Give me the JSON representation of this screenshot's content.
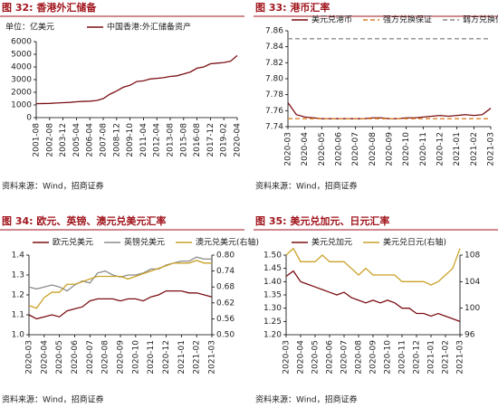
{
  "chart_data": [
    {
      "type": "line",
      "title": "图 32: 香港外汇储备",
      "unit_label": "单位：亿美元",
      "source": "资料来源：Wind，招商证券",
      "categories": [
        "2001-08",
        null,
        "2002-08",
        null,
        "2003-12",
        null,
        "2005-04",
        null,
        "2006-04",
        null,
        "2007-08",
        null,
        "2008-12",
        null,
        "2009-10",
        null,
        "2011-04",
        null,
        "2012-04",
        null,
        "2013-08",
        null,
        "2015-08",
        null,
        "2016-08",
        null,
        "2017-12",
        null,
        "2019-02",
        null,
        "2020-04"
      ],
      "series": [
        {
          "name": "中国香港:外汇储备资产",
          "color": "#7b0f14",
          "values": [
            1100,
            1110,
            1120,
            1150,
            1180,
            1200,
            1250,
            1280,
            1300,
            1350,
            1500,
            1850,
            2100,
            2400,
            2550,
            2850,
            2900,
            3050,
            3100,
            3150,
            3250,
            3300,
            3450,
            3600,
            3900,
            4000,
            4250,
            4300,
            4350,
            4450,
            4900
          ]
        }
      ],
      "ylim": [
        0,
        6000
      ],
      "yticks": [
        0,
        1000,
        2000,
        3000,
        4000,
        5000,
        6000
      ]
    },
    {
      "type": "line",
      "title": "图 33: 港币汇率",
      "source": "资料来源：Wind，招商证券",
      "categories": [
        "2020-03",
        null,
        "2020-04",
        null,
        "2020-05",
        null,
        "2020-06",
        null,
        "2020-07",
        null,
        "2020-08",
        null,
        "2020-09",
        null,
        "2020-10",
        null,
        "2020-11",
        null,
        "2020-12",
        null,
        "2021-01",
        null,
        "2021-02",
        null,
        "2021-03"
      ],
      "series": [
        {
          "name": "美元兑港币",
          "color": "#7b0f14",
          "values": [
            7.77,
            7.755,
            7.752,
            7.751,
            7.75,
            7.75,
            7.75,
            7.75,
            7.75,
            7.75,
            7.751,
            7.751,
            7.75,
            7.75,
            7.751,
            7.751,
            7.752,
            7.753,
            7.754,
            7.753,
            7.754,
            7.755,
            7.754,
            7.755,
            7.763
          ]
        },
        {
          "name": "强方兑换保证",
          "color": "#d9822b",
          "dashed": true,
          "values": [
            7.75,
            7.75,
            7.75,
            7.75,
            7.75,
            7.75,
            7.75,
            7.75,
            7.75,
            7.75,
            7.75,
            7.75,
            7.75,
            7.75,
            7.75,
            7.75,
            7.75,
            7.75,
            7.75,
            7.75,
            7.75,
            7.75,
            7.75,
            7.75,
            7.75
          ]
        },
        {
          "name": "弱方兑换保证",
          "color": "#8c8c8c",
          "dashed": true,
          "values": [
            7.85,
            7.85,
            7.85,
            7.85,
            7.85,
            7.85,
            7.85,
            7.85,
            7.85,
            7.85,
            7.85,
            7.85,
            7.85,
            7.85,
            7.85,
            7.85,
            7.85,
            7.85,
            7.85,
            7.85,
            7.85,
            7.85,
            7.85,
            7.85,
            7.85
          ]
        }
      ],
      "ylim": [
        7.74,
        7.86
      ],
      "yticks": [
        7.74,
        7.76,
        7.78,
        {
          "value": 7.8,
          "label": "7.80"
        },
        7.82,
        7.84,
        7.86
      ]
    },
    {
      "type": "line",
      "title": "图 34: 欧元、英镑、澳元兑美元汇率",
      "source": "资料来源：Wind，招商证券",
      "categories": [
        "2020-03",
        null,
        "2020-04",
        null,
        "2020-05",
        null,
        "2020-06",
        null,
        "2020-07",
        null,
        "2020-08",
        null,
        "2020-09",
        null,
        "2020-10",
        null,
        "2020-11",
        null,
        "2020-12",
        null,
        "2021-01",
        null,
        "2021-02",
        null,
        "2021-03"
      ],
      "series": [
        {
          "name": "欧元兑美元",
          "color": "#7b0f14",
          "values": [
            1.1,
            1.08,
            1.09,
            1.1,
            1.09,
            1.12,
            1.13,
            1.14,
            1.17,
            1.18,
            1.18,
            1.18,
            1.17,
            1.18,
            1.18,
            1.17,
            1.19,
            1.2,
            1.22,
            1.22,
            1.22,
            1.21,
            1.21,
            1.2,
            1.19
          ]
        },
        {
          "name": "英镑兑美元",
          "color": "#8c8c8c",
          "values": [
            1.24,
            1.23,
            1.24,
            1.25,
            1.24,
            1.22,
            1.25,
            1.27,
            1.26,
            1.31,
            1.32,
            1.3,
            1.29,
            1.3,
            1.3,
            1.31,
            1.33,
            1.33,
            1.35,
            1.36,
            1.37,
            1.37,
            1.39,
            1.38,
            1.38
          ]
        },
        {
          "name": "澳元兑美元(右轴)",
          "color": "#c9a227",
          "axis": "y2",
          "values": [
            0.61,
            0.6,
            0.64,
            0.66,
            0.66,
            0.69,
            0.69,
            0.7,
            0.71,
            0.72,
            0.72,
            0.72,
            0.72,
            0.71,
            0.72,
            0.73,
            0.74,
            0.75,
            0.76,
            0.77,
            0.77,
            0.77,
            0.78,
            0.77,
            0.77
          ]
        }
      ],
      "ylim": [
        1,
        1.4
      ],
      "yticks": [
        {
          "value": 1,
          "label": "1.0"
        },
        1.1,
        1.2,
        1.3,
        1.4
      ],
      "y2lim": [
        0.5,
        0.8
      ],
      "y2ticks": [
        {
          "value": 0.5,
          "label": "0.50"
        },
        0.56,
        0.62,
        0.68,
        0.74,
        {
          "value": 0.8,
          "label": "0.80"
        }
      ]
    },
    {
      "type": "line",
      "title": "图 35: 美元兑加元、日元汇率",
      "source": "资料来源：Wind，招商证券",
      "categories": [
        "2020-03",
        null,
        "2020-04",
        null,
        "2020-05",
        null,
        "2020-06",
        null,
        "2020-07",
        null,
        "2020-08",
        null,
        "2020-09",
        null,
        "2020-10",
        null,
        "2020-11",
        null,
        "2020-12",
        null,
        "2021-01",
        null,
        "2021-02",
        null,
        "2021-03"
      ],
      "series": [
        {
          "name": "美元兑加元",
          "color": "#7b0f14",
          "values": [
            1.42,
            1.44,
            1.4,
            1.39,
            1.38,
            1.37,
            1.36,
            1.35,
            1.36,
            1.34,
            1.33,
            1.32,
            1.33,
            1.32,
            1.33,
            1.32,
            1.3,
            1.3,
            1.28,
            1.28,
            1.27,
            1.28,
            1.27,
            1.26,
            1.25
          ]
        },
        {
          "name": "美元兑日元(右轴)",
          "color": "#c9a227",
          "axis": "y2",
          "values": [
            108,
            109,
            107,
            107,
            107,
            108,
            107,
            107,
            107,
            106,
            105,
            106,
            105,
            105,
            105,
            105,
            104,
            104,
            104,
            104,
            103.5,
            104,
            105,
            106,
            109
          ]
        }
      ],
      "ylim": [
        1.2,
        1.5
      ],
      "yticks": [
        {
          "value": 1.2,
          "label": "1.20"
        },
        1.25,
        {
          "value": 1.3,
          "label": "1.30"
        },
        1.35,
        {
          "value": 1.4,
          "label": "1.40"
        },
        1.45,
        {
          "value": 1.5,
          "label": "1.50"
        }
      ],
      "y2lim": [
        96,
        108
      ],
      "y2ticks": [
        96,
        100,
        104,
        108
      ]
    }
  ]
}
